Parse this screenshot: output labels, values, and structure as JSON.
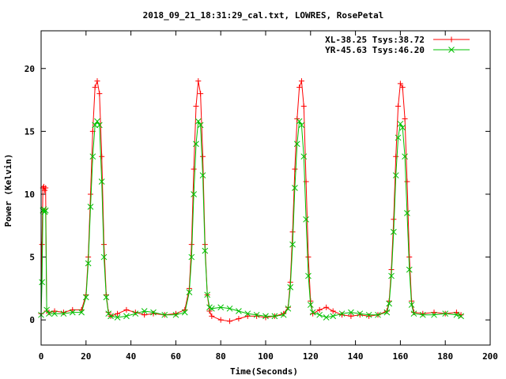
{
  "chart_data": {
    "type": "line",
    "title": "2018_09_21_18:31:29_cal.txt, LOWRES, RosePetal",
    "xlabel": "Time(Seconds)",
    "ylabel": "Power (Kelvin)",
    "xlim": [
      0,
      200
    ],
    "ylim": [
      -2,
      23
    ],
    "xticks": [
      0,
      20,
      40,
      60,
      80,
      100,
      120,
      140,
      160,
      180,
      200
    ],
    "yticks": [
      0,
      5,
      10,
      15,
      20
    ],
    "legend_position": "top-right",
    "series": [
      {
        "name": "XL-38.25 Tsys:38.72",
        "color": "#ff0000",
        "marker": "plus",
        "x": [
          0.0,
          0.4,
          0.8,
          1.2,
          1.6,
          2.0,
          2.5,
          3.5,
          6.0,
          10.0,
          14.0,
          18.0,
          20.0,
          21.0,
          22.0,
          23.0,
          24.0,
          25.0,
          26.0,
          27.0,
          28.0,
          29.0,
          30.0,
          31.0,
          34.0,
          38.0,
          42.0,
          46.0,
          50.0,
          55.0,
          60.0,
          64.0,
          66.0,
          67.0,
          68.0,
          69.0,
          70.0,
          71.0,
          72.0,
          73.0,
          74.0,
          75.0,
          76.0,
          80.0,
          84.0,
          88.0,
          92.0,
          96.0,
          100.0,
          104.0,
          108.0,
          110.0,
          111.0,
          112.0,
          113.0,
          114.0,
          115.0,
          116.0,
          117.0,
          118.0,
          119.0,
          120.0,
          121.0,
          124.0,
          127.0,
          130.0,
          134.0,
          138.0,
          142.0,
          146.0,
          150.0,
          154.0,
          155.0,
          156.0,
          157.0,
          158.0,
          159.0,
          160.0,
          161.0,
          162.0,
          163.0,
          164.0,
          165.0,
          166.0,
          170.0,
          175.0,
          180.0,
          185.0,
          187.0
        ],
        "y": [
          0.5,
          6.0,
          10.5,
          10.6,
          10.3,
          10.5,
          0.7,
          0.6,
          0.7,
          0.6,
          0.8,
          0.8,
          2.0,
          5.0,
          10.0,
          15.0,
          18.5,
          19.0,
          18.0,
          13.0,
          6.0,
          2.0,
          0.6,
          0.3,
          0.5,
          0.8,
          0.6,
          0.4,
          0.5,
          0.4,
          0.5,
          0.8,
          2.5,
          6.0,
          12.0,
          17.0,
          19.0,
          18.0,
          13.0,
          6.0,
          2.0,
          0.7,
          0.3,
          0.0,
          -0.1,
          0.1,
          0.3,
          0.3,
          0.2,
          0.3,
          0.5,
          1.0,
          3.0,
          7.0,
          12.0,
          16.0,
          18.5,
          19.0,
          17.0,
          11.0,
          5.0,
          1.5,
          0.5,
          0.8,
          1.0,
          0.7,
          0.4,
          0.3,
          0.4,
          0.3,
          0.4,
          0.7,
          1.5,
          4.0,
          8.0,
          13.0,
          17.0,
          18.8,
          18.5,
          16.0,
          11.0,
          5.0,
          1.5,
          0.6,
          0.5,
          0.6,
          0.5,
          0.6,
          0.4
        ]
      },
      {
        "name": "YR-45.63 Tsys:46.20",
        "color": "#00c000",
        "marker": "cross",
        "x": [
          0.0,
          0.4,
          0.8,
          1.2,
          1.6,
          2.0,
          2.5,
          3.5,
          6.0,
          10.0,
          14.0,
          18.0,
          20.0,
          21.0,
          22.0,
          23.0,
          24.0,
          25.0,
          26.0,
          27.0,
          28.0,
          29.0,
          30.0,
          31.0,
          34.0,
          38.0,
          42.0,
          46.0,
          50.0,
          55.0,
          60.0,
          64.0,
          66.0,
          67.0,
          68.0,
          69.0,
          70.0,
          71.0,
          72.0,
          73.0,
          74.0,
          75.0,
          76.0,
          80.0,
          84.0,
          88.0,
          92.0,
          96.0,
          100.0,
          104.0,
          108.0,
          110.0,
          111.0,
          112.0,
          113.0,
          114.0,
          115.0,
          116.0,
          117.0,
          118.0,
          119.0,
          120.0,
          121.0,
          124.0,
          127.0,
          130.0,
          134.0,
          138.0,
          142.0,
          146.0,
          150.0,
          154.0,
          155.0,
          156.0,
          157.0,
          158.0,
          159.0,
          160.0,
          161.0,
          162.0,
          163.0,
          164.0,
          165.0,
          166.0,
          170.0,
          175.0,
          180.0,
          185.0,
          187.0
        ],
        "y": [
          0.4,
          3.0,
          8.7,
          8.8,
          8.6,
          8.7,
          0.8,
          0.5,
          0.5,
          0.5,
          0.6,
          0.6,
          1.8,
          4.5,
          9.0,
          13.0,
          15.5,
          15.8,
          15.5,
          11.0,
          5.0,
          1.8,
          0.5,
          0.3,
          0.2,
          0.3,
          0.5,
          0.7,
          0.6,
          0.4,
          0.4,
          0.6,
          2.2,
          5.0,
          10.0,
          14.0,
          15.8,
          15.5,
          11.5,
          5.5,
          2.0,
          1.0,
          0.9,
          1.0,
          0.9,
          0.7,
          0.5,
          0.4,
          0.3,
          0.3,
          0.4,
          0.9,
          2.6,
          6.0,
          10.5,
          14.0,
          15.8,
          15.5,
          13.0,
          8.0,
          3.5,
          1.2,
          0.6,
          0.4,
          0.2,
          0.3,
          0.5,
          0.6,
          0.5,
          0.4,
          0.4,
          0.6,
          1.3,
          3.5,
          7.0,
          11.5,
          14.5,
          15.6,
          15.3,
          13.0,
          8.5,
          4.0,
          1.2,
          0.5,
          0.4,
          0.4,
          0.5,
          0.4,
          0.3
        ]
      }
    ]
  }
}
